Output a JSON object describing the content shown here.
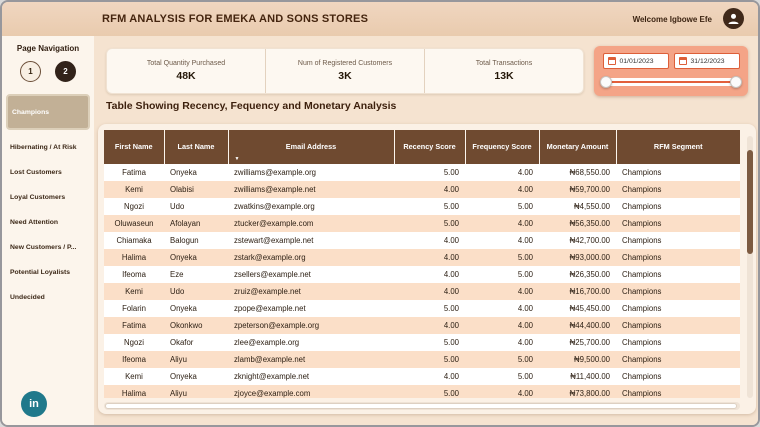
{
  "window": {
    "title": "RFM ANALYSIS FOR EMEKA AND SONS STORES",
    "welcome": "Welcome Igbowe Efe"
  },
  "sidebar": {
    "title": "Page Navigation",
    "page_buttons": [
      {
        "label": "1",
        "active": false
      },
      {
        "label": "2",
        "active": true
      }
    ],
    "items": [
      {
        "label": "Champions",
        "selected": true
      },
      {
        "label": "Hibernating / At Risk",
        "selected": false
      },
      {
        "label": "Lost Customers",
        "selected": false
      },
      {
        "label": "Loyal Customers",
        "selected": false
      },
      {
        "label": "Need Attention",
        "selected": false
      },
      {
        "label": "New Customers / P...",
        "selected": false
      },
      {
        "label": "Potential Loyalists",
        "selected": false
      },
      {
        "label": "Undecided",
        "selected": false
      }
    ],
    "linkedin_label": "in"
  },
  "kpis": [
    {
      "label": "Total Quantity Purchased",
      "value": "48K"
    },
    {
      "label": "Num of Registered Customers",
      "value": "3K"
    },
    {
      "label": "Total Transactions",
      "value": "13K"
    }
  ],
  "date_filter": {
    "start": "01/01/2023",
    "end": "31/12/2023"
  },
  "table": {
    "title": "Table Showing Recency, Fequency and Monetary Analysis",
    "columns": [
      "First Name",
      "Last Name",
      "Email Address",
      "Recency Score",
      "Frequency Score",
      "Monetary Amount",
      "RFM Segment"
    ],
    "sorted_column": "Email Address",
    "sort_direction": "desc",
    "rows": [
      [
        "Fatima",
        "Onyeka",
        "zwilliams@example.org",
        "5.00",
        "4.00",
        "₦68,550.00",
        "Champions"
      ],
      [
        "Kemi",
        "Olabisi",
        "zwilliams@example.net",
        "4.00",
        "4.00",
        "₦59,700.00",
        "Champions"
      ],
      [
        "Ngozi",
        "Udo",
        "zwatkins@example.org",
        "5.00",
        "5.00",
        "₦4,550.00",
        "Champions"
      ],
      [
        "Oluwaseun",
        "Afolayan",
        "ztucker@example.com",
        "5.00",
        "4.00",
        "₦56,350.00",
        "Champions"
      ],
      [
        "Chiamaka",
        "Balogun",
        "zstewart@example.net",
        "4.00",
        "4.00",
        "₦42,700.00",
        "Champions"
      ],
      [
        "Halima",
        "Onyeka",
        "zstark@example.org",
        "4.00",
        "5.00",
        "₦93,000.00",
        "Champions"
      ],
      [
        "Ifeoma",
        "Eze",
        "zsellers@example.net",
        "4.00",
        "5.00",
        "₦26,350.00",
        "Champions"
      ],
      [
        "Kemi",
        "Udo",
        "zruiz@example.net",
        "4.00",
        "4.00",
        "₦16,700.00",
        "Champions"
      ],
      [
        "Folarin",
        "Onyeka",
        "zpope@example.net",
        "5.00",
        "4.00",
        "₦45,450.00",
        "Champions"
      ],
      [
        "Fatima",
        "Okonkwo",
        "zpeterson@example.org",
        "4.00",
        "4.00",
        "₦44,400.00",
        "Champions"
      ],
      [
        "Ngozi",
        "Okafor",
        "zlee@example.org",
        "5.00",
        "4.00",
        "₦25,700.00",
        "Champions"
      ],
      [
        "Ifeoma",
        "Aliyu",
        "zlamb@example.net",
        "5.00",
        "5.00",
        "₦9,500.00",
        "Champions"
      ],
      [
        "Kemi",
        "Onyeka",
        "zknight@example.net",
        "4.00",
        "5.00",
        "₦11,400.00",
        "Champions"
      ],
      [
        "Halima",
        "Aliyu",
        "zjoyce@example.com",
        "5.00",
        "4.00",
        "₦73,800.00",
        "Champions"
      ]
    ]
  },
  "colors": {
    "header_bar": "#e9cbae",
    "table_header": "#6f4a30",
    "row_alt": "#fbdfc8",
    "date_filter": "#f4a487",
    "date_accent": "#dd5f39",
    "linkedin": "#20798b",
    "selected_nav": "#c2b096"
  }
}
